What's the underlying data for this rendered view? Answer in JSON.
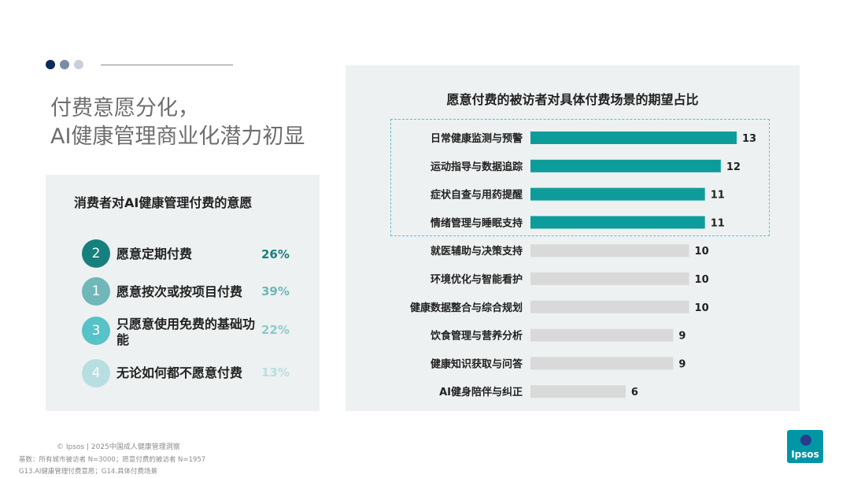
{
  "headline": {
    "line1": "付费意愿分化，",
    "line2": "AI健康管理商业化潜力初显"
  },
  "left_panel": {
    "title": "消费者对AI健康管理付费的意愿",
    "options": [
      {
        "rank": "2",
        "label": "愿意定期付费",
        "pct": "26%",
        "color": "#16807f",
        "pct_color": "#16807f"
      },
      {
        "rank": "1",
        "label": "愿意按次或按项目付费",
        "pct": "39%",
        "color": "#6fb7b9",
        "pct_color": "#6fb7b9"
      },
      {
        "rank": "3",
        "label": "只愿意使用免费的基础功能",
        "pct": "22%",
        "color": "#57c2c7",
        "pct_color": "#8fc9cb"
      },
      {
        "rank": "4",
        "label": "无论如何都不愿意付费",
        "pct": "13%",
        "color": "#b7dfe1",
        "pct_color": "#b7dfe1"
      }
    ]
  },
  "chart_data": {
    "type": "bar",
    "orientation": "horizontal",
    "title": "愿意付费的被访者对具体付费场景的期望占比",
    "categories": [
      "日常健康监测与预警",
      "运动指导与数据追踪",
      "症状自查与用药提醒",
      "情绪管理与睡眠支持",
      "就医辅助与决策支持",
      "环境优化与智能看护",
      "健康数据整合与综合规划",
      "饮食管理与营养分析",
      "健康知识获取与问答",
      "AI健身陪伴与纠正"
    ],
    "values": [
      13,
      12,
      11,
      11,
      10,
      10,
      10,
      9,
      9,
      6
    ],
    "highlighted_count": 4,
    "colors": {
      "highlight": "#0e9c9b",
      "normal": "#d9d9d9"
    },
    "xlim": [
      0,
      13
    ]
  },
  "footer": {
    "copyright": "© Ipsos | 2025中国成人健康管理洞察",
    "base": "基数：所有城市被访者 N=3000；愿意付费的被访者 N=1957",
    "questions": "G13.AI健康管理付费意愿；G14.具体付费场景"
  },
  "logo": {
    "text": "Ipsos"
  }
}
